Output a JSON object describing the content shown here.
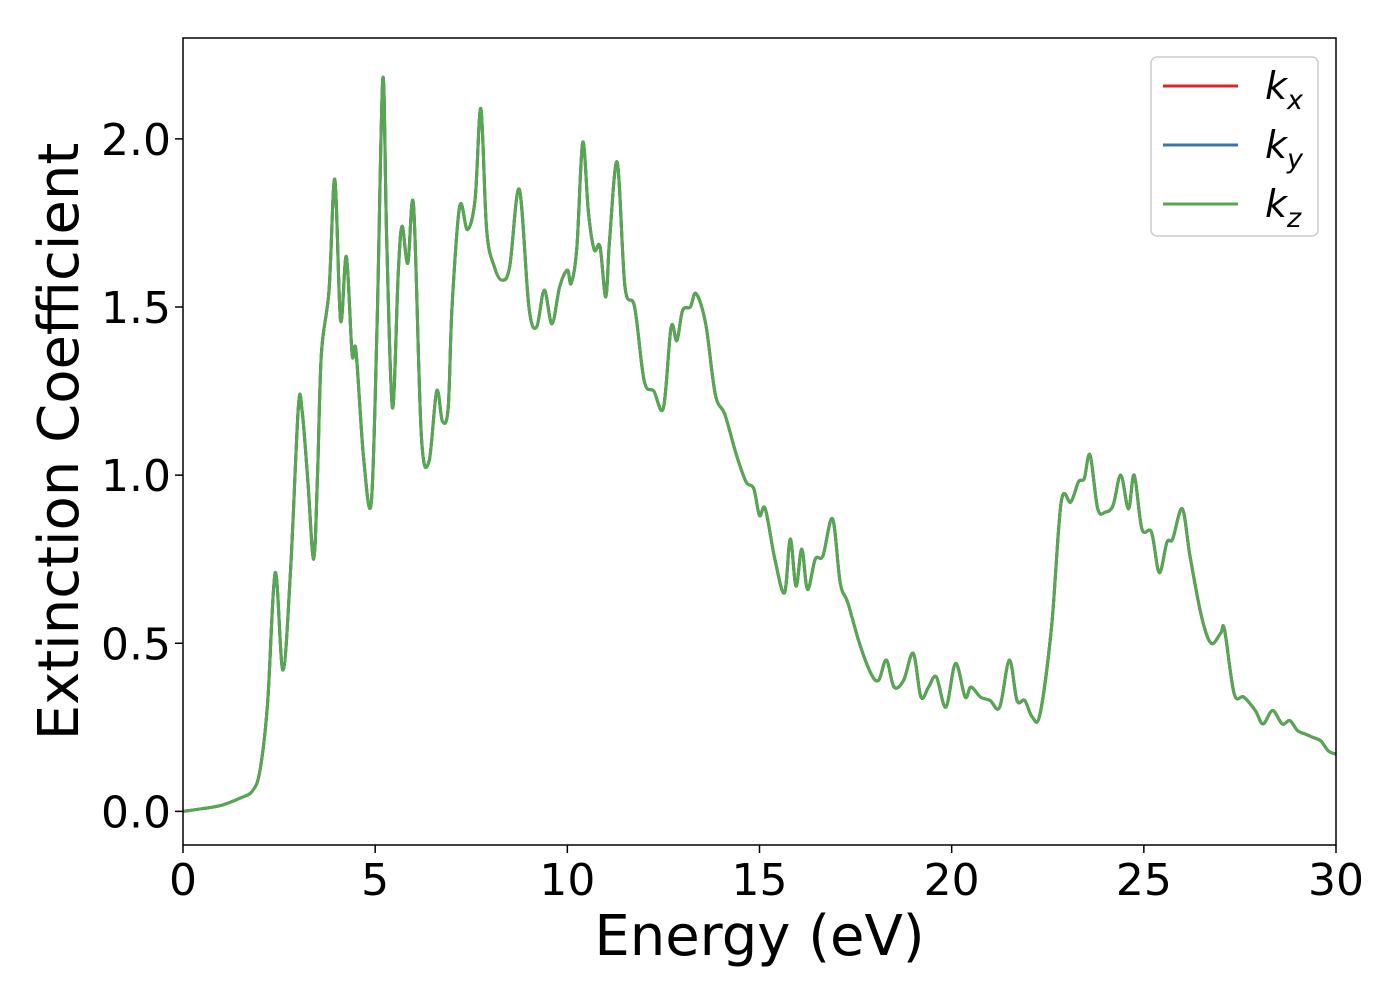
{
  "chart_data": {
    "type": "line",
    "title": "",
    "xlabel": "Energy (eV)",
    "ylabel": "Extinction Coefficient",
    "xlim": [
      0,
      30
    ],
    "ylim": [
      -0.1,
      2.3
    ],
    "xticks": [
      0,
      5,
      10,
      15,
      20,
      25,
      30
    ],
    "xtick_labels": [
      "0",
      "5",
      "10",
      "15",
      "20",
      "25",
      "30"
    ],
    "yticks": [
      0.0,
      0.5,
      1.0,
      1.5,
      2.0
    ],
    "ytick_labels": [
      "0.0",
      "0.5",
      "1.0",
      "1.5",
      "2.0"
    ],
    "grid": false,
    "legend_position": "top-right",
    "series": [
      {
        "name": "k_x",
        "label": {
          "base": "k",
          "sub": "x"
        },
        "color": "#d62728",
        "ref": "shared"
      },
      {
        "name": "k_y",
        "label": {
          "base": "k",
          "sub": "y"
        },
        "color": "#3b75af",
        "ref": "shared"
      },
      {
        "name": "k_z",
        "label": {
          "base": "k",
          "sub": "z"
        },
        "color": "#55a84f",
        "ref": "shared"
      }
    ],
    "x": [
      0,
      0.5,
      1.0,
      1.5,
      1.8,
      2.0,
      2.2,
      2.4,
      2.6,
      2.8,
      3.0,
      3.1,
      3.25,
      3.4,
      3.5,
      3.6,
      3.8,
      3.95,
      4.1,
      4.25,
      4.4,
      4.5,
      4.7,
      4.9,
      5.05,
      5.2,
      5.3,
      5.45,
      5.6,
      5.7,
      5.85,
      6.0,
      6.2,
      6.4,
      6.6,
      6.75,
      6.9,
      7.0,
      7.2,
      7.4,
      7.6,
      7.75,
      7.9,
      8.1,
      8.3,
      8.5,
      8.75,
      9.0,
      9.2,
      9.4,
      9.6,
      9.8,
      10.0,
      10.1,
      10.25,
      10.4,
      10.55,
      10.7,
      10.85,
      11.0,
      11.1,
      11.3,
      11.5,
      11.75,
      12.0,
      12.25,
      12.5,
      12.7,
      12.85,
      13.0,
      13.2,
      13.35,
      13.6,
      13.85,
      14.1,
      14.4,
      14.65,
      14.85,
      15.0,
      15.15,
      15.4,
      15.65,
      15.8,
      15.95,
      16.1,
      16.25,
      16.45,
      16.65,
      16.9,
      17.1,
      17.3,
      17.6,
      17.9,
      18.1,
      18.3,
      18.5,
      18.75,
      19.0,
      19.2,
      19.4,
      19.6,
      19.85,
      20.1,
      20.35,
      20.5,
      20.75,
      21.0,
      21.25,
      21.5,
      21.7,
      21.9,
      22.1,
      22.3,
      22.6,
      22.85,
      23.1,
      23.3,
      23.45,
      23.6,
      23.8,
      24.0,
      24.2,
      24.4,
      24.6,
      24.75,
      24.95,
      25.2,
      25.4,
      25.6,
      25.75,
      26.0,
      26.2,
      26.5,
      26.75,
      27.0,
      27.1,
      27.35,
      27.6,
      27.9,
      28.1,
      28.35,
      28.6,
      28.8,
      29.0,
      29.2,
      29.4,
      29.6,
      29.8,
      30.0
    ],
    "y": [
      0.0,
      0.008,
      0.018,
      0.04,
      0.06,
      0.12,
      0.32,
      0.71,
      0.42,
      0.72,
      1.2,
      1.19,
      0.98,
      0.75,
      1.0,
      1.36,
      1.55,
      1.88,
      1.46,
      1.65,
      1.36,
      1.37,
      1.05,
      0.92,
      1.45,
      2.18,
      1.7,
      1.2,
      1.6,
      1.74,
      1.63,
      1.8,
      1.12,
      1.04,
      1.25,
      1.16,
      1.2,
      1.5,
      1.8,
      1.73,
      1.82,
      2.09,
      1.73,
      1.62,
      1.58,
      1.62,
      1.85,
      1.5,
      1.44,
      1.55,
      1.45,
      1.56,
      1.61,
      1.57,
      1.68,
      1.99,
      1.78,
      1.67,
      1.68,
      1.53,
      1.7,
      1.93,
      1.56,
      1.5,
      1.28,
      1.25,
      1.2,
      1.44,
      1.4,
      1.49,
      1.5,
      1.54,
      1.45,
      1.24,
      1.18,
      1.06,
      0.98,
      0.96,
      0.88,
      0.9,
      0.75,
      0.65,
      0.81,
      0.67,
      0.78,
      0.66,
      0.75,
      0.76,
      0.87,
      0.68,
      0.62,
      0.5,
      0.41,
      0.39,
      0.45,
      0.37,
      0.39,
      0.47,
      0.34,
      0.37,
      0.4,
      0.31,
      0.44,
      0.34,
      0.37,
      0.34,
      0.33,
      0.31,
      0.45,
      0.33,
      0.33,
      0.28,
      0.29,
      0.55,
      0.92,
      0.92,
      0.98,
      0.99,
      1.06,
      0.9,
      0.89,
      0.91,
      1.0,
      0.9,
      1.0,
      0.84,
      0.83,
      0.71,
      0.8,
      0.81,
      0.9,
      0.76,
      0.58,
      0.5,
      0.53,
      0.54,
      0.35,
      0.34,
      0.3,
      0.26,
      0.3,
      0.26,
      0.27,
      0.24,
      0.23,
      0.22,
      0.21,
      0.18,
      0.17
    ]
  }
}
